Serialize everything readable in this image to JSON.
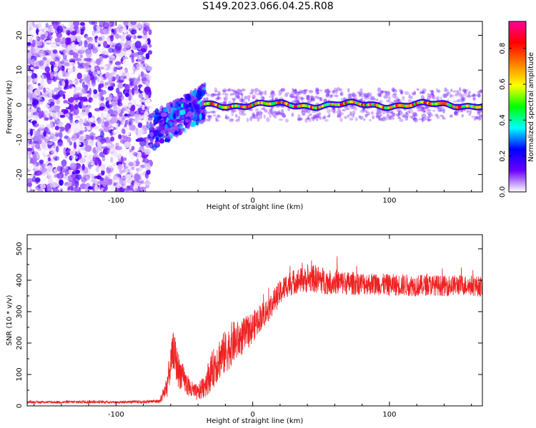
{
  "figure_title": "S149.2023.066.04.25.R08",
  "chart_data": [
    {
      "type": "heatmap",
      "title": "",
      "xlabel": "Height of straight line (km)",
      "ylabel": "Frequency (Hz)",
      "xlim": [
        -165,
        168
      ],
      "ylim": [
        -25,
        24
      ],
      "x_ticks": [
        -100,
        0,
        100
      ],
      "y_ticks": [
        -20,
        -10,
        0,
        10,
        20
      ],
      "description_regions": [
        {
          "x_range": [
            -165,
            -75
          ],
          "y_range": [
            -25,
            24
          ],
          "pattern": "broadband noise",
          "level": 0.1
        },
        {
          "x_range": [
            -75,
            -35
          ],
          "y_center_start": -8,
          "y_center_end": 1,
          "pattern": "rising trace",
          "level": 0.35
        },
        {
          "x_range": [
            -35,
            168
          ],
          "y_center": 0,
          "pattern": "narrow carrier line",
          "level": 0.55
        }
      ],
      "colorbar": {
        "label": "Normalized spectral amplitude",
        "range": [
          0,
          0.95
        ],
        "ticks": [
          0.0,
          0.2,
          0.4,
          0.6,
          0.8
        ],
        "colormap": [
          "#ffffff",
          "#6a00ff",
          "#0000ff",
          "#00ffff",
          "#00ff00",
          "#ffff00",
          "#ff7f00",
          "#ff0000",
          "#ff00a0"
        ]
      }
    },
    {
      "type": "line",
      "title": "",
      "xlabel": "Height of straight line (km)",
      "ylabel": "SNR (10 * v/v)",
      "xlim": [
        -165,
        168
      ],
      "ylim": [
        0,
        545
      ],
      "x_ticks": [
        -100,
        0,
        100
      ],
      "y_ticks": [
        0,
        100,
        200,
        300,
        400,
        500
      ],
      "color": "#ee2222",
      "series": [
        {
          "x": [
            -165,
            -140,
            -120,
            -100,
            -80,
            -68,
            -63,
            -58,
            -55,
            -50,
            -45,
            -40,
            -35,
            -30,
            -25,
            -20,
            -15,
            -10,
            -5,
            0,
            5,
            10,
            15,
            20,
            25,
            30,
            35,
            40,
            45,
            50,
            55,
            60,
            70,
            80,
            90,
            100,
            110,
            120,
            130,
            140,
            150,
            160,
            168
          ],
          "values": [
            12,
            12,
            13,
            12,
            13,
            15,
            60,
            180,
            120,
            80,
            50,
            40,
            70,
            110,
            150,
            170,
            200,
            210,
            230,
            250,
            280,
            300,
            330,
            360,
            385,
            395,
            400,
            400,
            405,
            400,
            395,
            395,
            390,
            390,
            388,
            385,
            385,
            383,
            385,
            382,
            385,
            383,
            380
          ],
          "spread": [
            4,
            4,
            5,
            4,
            5,
            6,
            40,
            60,
            60,
            40,
            30,
            25,
            45,
            60,
            70,
            70,
            70,
            60,
            55,
            50,
            45,
            40,
            40,
            40,
            40,
            40,
            40,
            40,
            45,
            45,
            40,
            40,
            38,
            36,
            35,
            35,
            35,
            35,
            33,
            33,
            33,
            33,
            33
          ]
        }
      ]
    }
  ]
}
